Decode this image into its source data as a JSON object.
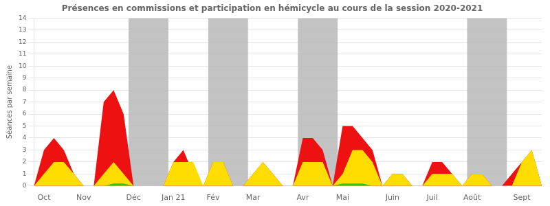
{
  "chart_data": {
    "type": "area",
    "title": "Présences en commissions et participation en hémicycle au cours de la session 2020-2021",
    "ylabel": "Séances par semaine",
    "categories": [
      null,
      "Oct",
      null,
      null,
      null,
      "Nov",
      null,
      null,
      null,
      null,
      "Déc",
      null,
      null,
      null,
      "Jan 21",
      null,
      null,
      null,
      "Fév",
      null,
      null,
      null,
      "Mar",
      null,
      null,
      null,
      null,
      "Avr",
      null,
      null,
      null,
      "Mai",
      null,
      null,
      null,
      null,
      "Juin",
      null,
      null,
      null,
      "Juil",
      null,
      null,
      null,
      "Août",
      null,
      null,
      null,
      null,
      "Sept",
      null,
      null
    ],
    "series": [
      {
        "color": "#ee1111",
        "values": [
          0,
          3,
          4,
          3,
          1,
          0,
          0,
          7,
          8,
          6,
          0,
          0,
          0,
          0,
          2,
          3,
          1,
          0,
          2,
          2,
          0,
          0,
          1,
          2,
          1,
          0,
          0,
          4,
          4,
          3,
          0,
          5,
          5,
          4,
          3,
          0,
          1,
          1,
          0,
          0,
          2,
          2,
          1,
          0,
          1,
          1,
          0,
          0,
          1,
          2,
          3,
          0
        ]
      },
      {
        "color": "#ffdd00",
        "values": [
          0,
          1,
          2,
          2,
          1,
          0,
          0,
          1,
          2,
          1,
          0,
          0,
          0,
          0,
          2,
          2,
          2,
          0,
          2,
          2,
          0,
          0,
          1,
          2,
          1,
          0,
          0,
          2,
          2,
          2,
          0,
          1,
          3,
          3,
          2,
          0,
          1,
          1,
          0,
          0,
          1,
          1,
          1,
          0,
          1,
          1,
          0,
          0,
          0,
          2,
          3,
          0
        ]
      },
      {
        "color": "#22cc22",
        "values": [
          0,
          0,
          0,
          0,
          0,
          0,
          0,
          0,
          0.2,
          0.2,
          0,
          0,
          0,
          0,
          0,
          0,
          0,
          0,
          0,
          0,
          0,
          0,
          0,
          0,
          0,
          0,
          0,
          0,
          0,
          0,
          0,
          0.2,
          0.2,
          0.2,
          0,
          0,
          0,
          0,
          0,
          0,
          0,
          0,
          0,
          0,
          0,
          0,
          0,
          0,
          0,
          0,
          0,
          0
        ]
      }
    ],
    "gray_bands": [
      [
        9.5,
        13.5
      ],
      [
        17.5,
        21.5
      ],
      [
        26.5,
        30.5
      ],
      [
        43.5,
        47.5
      ]
    ],
    "ylim": [
      0,
      14
    ],
    "yticks": [
      0,
      1,
      2,
      3,
      4,
      5,
      6,
      7,
      8,
      9,
      10,
      11,
      12,
      13,
      14
    ],
    "grid": true
  }
}
